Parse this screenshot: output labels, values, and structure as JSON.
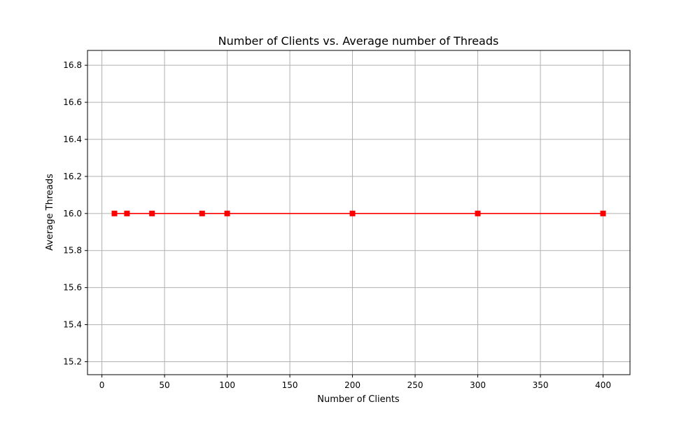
{
  "chart_data": {
    "type": "line",
    "title": "Number of Clients vs. Average number of Threads",
    "xlabel": "Number of Clients",
    "ylabel": "Average Threads",
    "xlim": [
      -11.5,
      421.5
    ],
    "ylim": [
      15.13,
      16.88
    ],
    "xticks": [
      0,
      50,
      100,
      150,
      200,
      250,
      300,
      350,
      400
    ],
    "yticks": [
      15.2,
      15.4,
      15.6,
      15.8,
      16.0,
      16.2,
      16.4,
      16.6,
      16.8
    ],
    "xtick_labels": [
      "0",
      "50",
      "100",
      "150",
      "200",
      "250",
      "300",
      "350",
      "400"
    ],
    "ytick_labels": [
      "15.2",
      "15.4",
      "15.6",
      "15.8",
      "16.0",
      "16.2",
      "16.4",
      "16.6",
      "16.8"
    ],
    "grid": true,
    "series": [
      {
        "color": "#ff0000",
        "marker": "square",
        "x": [
          10,
          20,
          40,
          80,
          100,
          200,
          300,
          400
        ],
        "y": [
          16.0,
          16.0,
          16.0,
          16.0,
          16.0,
          16.0,
          16.0,
          16.0
        ]
      }
    ]
  }
}
